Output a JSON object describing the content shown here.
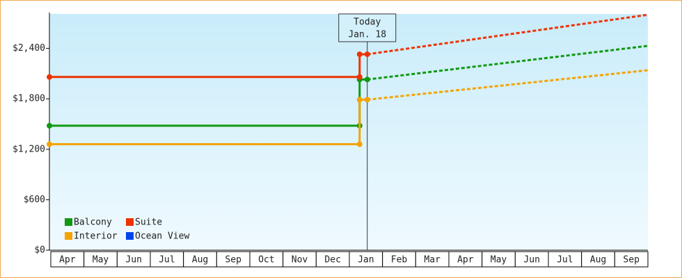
{
  "chart_data": {
    "type": "line",
    "categories": [
      "Apr",
      "May",
      "Jun",
      "Jul",
      "Aug",
      "Sep",
      "Oct",
      "Nov",
      "Dec",
      "Jan",
      "Feb",
      "Mar",
      "Apr",
      "May",
      "Jun",
      "Jul",
      "Aug",
      "Sep"
    ],
    "xlim": [
      0,
      18
    ],
    "ylim": [
      0,
      2810
    ],
    "yticks": [
      {
        "value": 0,
        "label": "$0"
      },
      {
        "value": 600,
        "label": "$600"
      },
      {
        "value": 1200,
        "label": "$1,200"
      },
      {
        "value": 1800,
        "label": "$1,800"
      },
      {
        "value": 2400,
        "label": "$2,400"
      }
    ],
    "today": {
      "x": 9.56,
      "label": [
        "Today",
        "Jan. 18"
      ]
    },
    "legend": "lower left",
    "series": [
      {
        "name": "Balcony",
        "color": "#119911",
        "history": {
          "x": [
            0,
            9.33,
            9.33,
            9.56
          ],
          "values": [
            1480,
            1480,
            2030,
            2030
          ]
        },
        "forecast": {
          "x": [
            9.56,
            18
          ],
          "values": [
            2030,
            2430
          ]
        }
      },
      {
        "name": "Suite",
        "color": "#ee3300",
        "history": {
          "x": [
            0,
            9.33,
            9.33,
            9.56
          ],
          "values": [
            2060,
            2060,
            2330,
            2330
          ]
        },
        "forecast": {
          "x": [
            9.56,
            18
          ],
          "values": [
            2330,
            2800
          ]
        }
      },
      {
        "name": "Interior",
        "color": "#f5a300",
        "history": {
          "x": [
            0,
            9.33,
            9.33,
            9.56
          ],
          "values": [
            1260,
            1260,
            1790,
            1790
          ]
        },
        "forecast": {
          "x": [
            9.56,
            18
          ],
          "values": [
            1790,
            2140
          ]
        }
      },
      {
        "name": "Ocean View",
        "color": "#0044ee",
        "history": {
          "x": [],
          "values": []
        },
        "forecast": {
          "x": [],
          "values": []
        }
      }
    ]
  }
}
